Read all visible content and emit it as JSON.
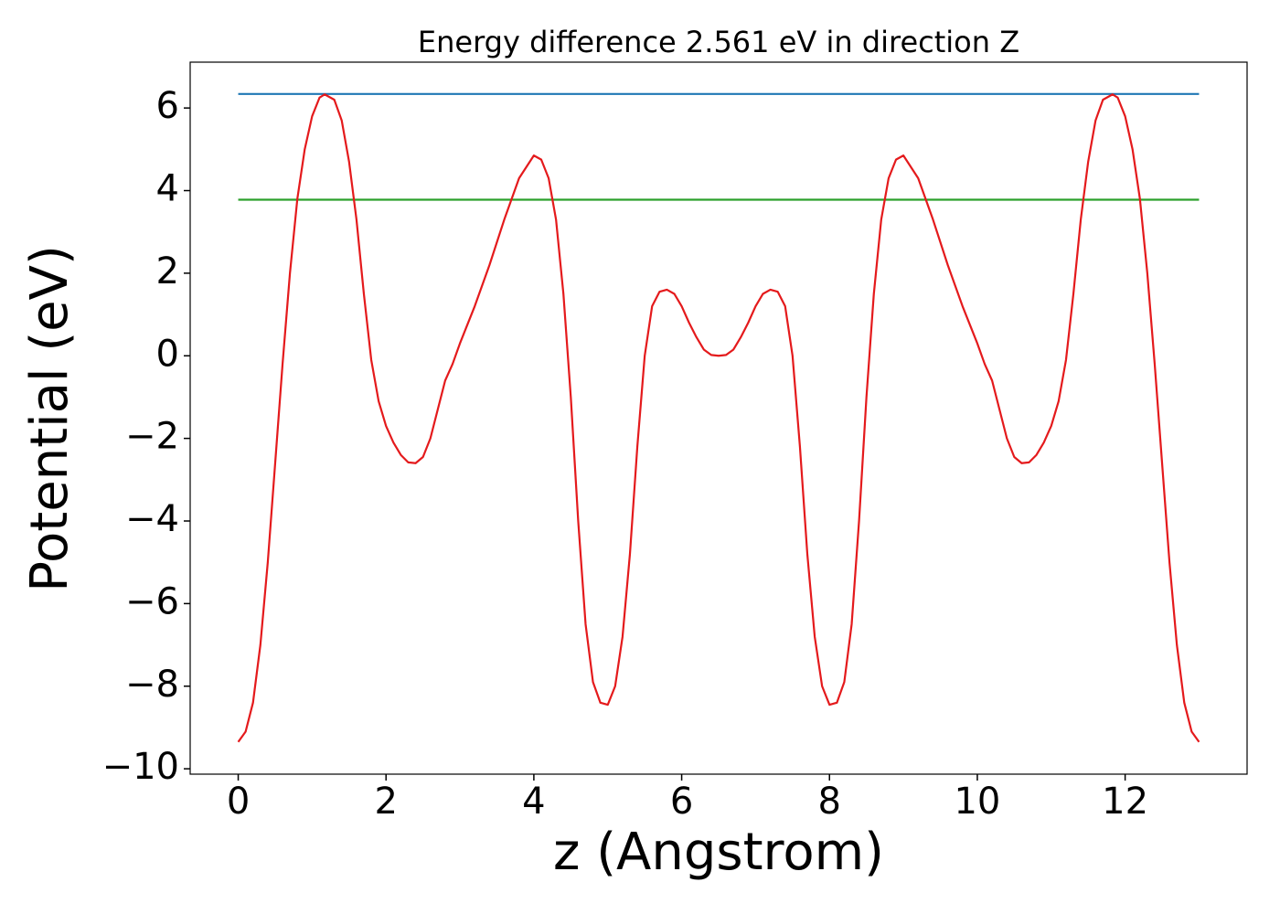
{
  "chart_data": {
    "type": "line",
    "title": "Energy difference 2.561 eV in direction Z",
    "x_label": "z (Angstrom)",
    "y_label": "Potential (eV)",
    "xlim": [
      -0.65,
      13.65
    ],
    "ylim": [
      -10.13,
      7.11
    ],
    "xticks": [
      0,
      2,
      4,
      6,
      8,
      10,
      12
    ],
    "yticks": [
      {
        "value": -10,
        "label": "−10"
      },
      {
        "value": -8,
        "label": "−8"
      },
      {
        "value": -6,
        "label": "−6"
      },
      {
        "value": -4,
        "label": "−4"
      },
      {
        "value": -2,
        "label": "−2"
      },
      0,
      2,
      4,
      6
    ],
    "grid": false,
    "series": [
      {
        "color": "#1f77b4",
        "x": [
          0,
          13
        ],
        "values": [
          6.34,
          6.34
        ]
      },
      {
        "color": "#2ca02c",
        "x": [
          0,
          13
        ],
        "values": [
          3.78,
          3.78
        ]
      },
      {
        "color": "#e41a1c",
        "x": [
          0,
          0.1,
          0.2,
          0.3,
          0.4,
          0.5,
          0.6,
          0.7,
          0.8,
          0.9,
          1.0,
          1.1,
          1.17,
          1.3,
          1.4,
          1.5,
          1.6,
          1.7,
          1.8,
          1.9,
          2.0,
          2.1,
          2.2,
          2.3,
          2.4,
          2.5,
          2.6,
          2.7,
          2.8,
          2.9,
          3.0,
          3.2,
          3.4,
          3.6,
          3.8,
          4.0,
          4.1,
          4.2,
          4.3,
          4.4,
          4.5,
          4.6,
          4.7,
          4.8,
          4.9,
          5.0,
          5.1,
          5.2,
          5.3,
          5.4,
          5.5,
          5.6,
          5.7,
          5.8,
          5.9,
          6.0,
          6.1,
          6.2,
          6.3,
          6.4,
          6.5,
          6.6,
          6.7,
          6.8,
          6.9,
          7.0,
          7.1,
          7.2,
          7.3,
          7.4,
          7.5,
          7.6,
          7.7,
          7.8,
          7.9,
          8.0,
          8.1,
          8.2,
          8.3,
          8.4,
          8.5,
          8.6,
          8.7,
          8.8,
          8.9,
          9.0,
          9.2,
          9.4,
          9.6,
          9.8,
          10.0,
          10.1,
          10.2,
          10.3,
          10.4,
          10.5,
          10.6,
          10.7,
          10.8,
          10.9,
          11.0,
          11.1,
          11.2,
          11.3,
          11.4,
          11.5,
          11.6,
          11.7,
          11.83,
          11.9,
          12.0,
          12.1,
          12.2,
          12.3,
          12.4,
          12.5,
          12.6,
          12.7,
          12.8,
          12.9,
          13.0
        ],
        "values": [
          -9.35,
          -9.1,
          -8.4,
          -7.0,
          -5.0,
          -2.6,
          -0.2,
          2.0,
          3.8,
          5.0,
          5.8,
          6.25,
          6.33,
          6.2,
          5.7,
          4.7,
          3.3,
          1.5,
          -0.1,
          -1.1,
          -1.7,
          -2.1,
          -2.4,
          -2.58,
          -2.6,
          -2.45,
          -2.0,
          -1.3,
          -0.6,
          -0.2,
          0.3,
          1.2,
          2.2,
          3.3,
          4.3,
          4.85,
          4.75,
          4.3,
          3.3,
          1.5,
          -1.0,
          -4.0,
          -6.5,
          -7.9,
          -8.4,
          -8.45,
          -8.0,
          -6.8,
          -4.8,
          -2.2,
          0.0,
          1.2,
          1.55,
          1.6,
          1.5,
          1.2,
          0.8,
          0.45,
          0.15,
          0.02,
          0.0,
          0.02,
          0.15,
          0.45,
          0.8,
          1.2,
          1.5,
          1.6,
          1.55,
          1.2,
          0.0,
          -2.2,
          -4.8,
          -6.8,
          -8.0,
          -8.45,
          -8.4,
          -7.9,
          -6.5,
          -4.0,
          -1.0,
          1.5,
          3.3,
          4.3,
          4.75,
          4.85,
          4.3,
          3.3,
          2.2,
          1.2,
          0.3,
          -0.2,
          -0.6,
          -1.3,
          -2.0,
          -2.45,
          -2.6,
          -2.58,
          -2.4,
          -2.1,
          -1.7,
          -1.1,
          -0.1,
          1.5,
          3.3,
          4.7,
          5.7,
          6.2,
          6.33,
          6.25,
          5.8,
          5.0,
          3.8,
          2.0,
          -0.2,
          -2.6,
          -5.0,
          -7.0,
          -8.4,
          -9.1,
          -9.35
        ]
      }
    ]
  }
}
